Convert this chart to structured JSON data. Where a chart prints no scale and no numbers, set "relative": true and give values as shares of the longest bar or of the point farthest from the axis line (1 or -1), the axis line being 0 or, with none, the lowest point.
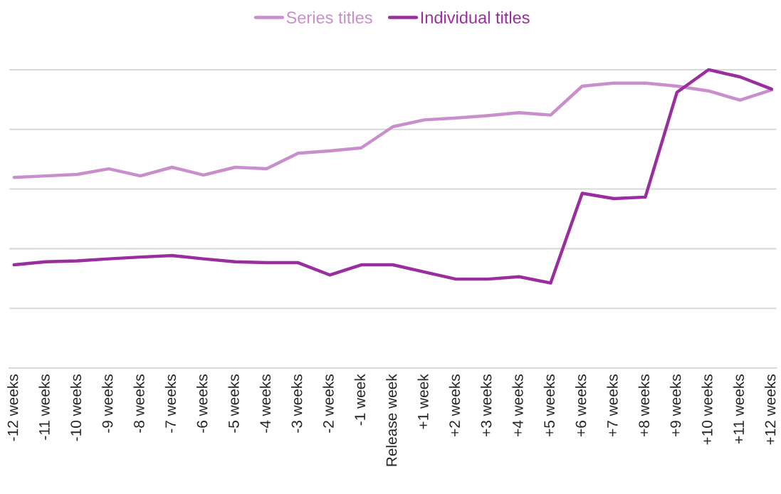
{
  "chart_data": {
    "type": "line",
    "relative": true,
    "grid": "y",
    "legend": "top",
    "marker": "none",
    "line_style": "solid",
    "categories": [
      "-12 weeks",
      "-11 weeks",
      "-10 weeks",
      "-9 weeks",
      "-8 weeks",
      "-7 weeks",
      "-6 weeks",
      "-5 weeks",
      "-4 weeks",
      "-3 weeks",
      "-2 weeks",
      "-1 week",
      "Release week",
      "+1 week",
      "+2 weeks",
      "+3 weeks",
      "+4 weeks",
      "+5 weeks",
      "+6 weeks",
      "+7 weeks",
      "+8 weeks",
      "+9 weeks",
      "+10 weeks",
      "+11 weeks",
      "+12 weeks"
    ],
    "series": [
      {
        "name": "Series titles",
        "color": "#c98fcc",
        "values": [
          0.639,
          0.644,
          0.649,
          0.668,
          0.644,
          0.673,
          0.647,
          0.673,
          0.668,
          0.72,
          0.728,
          0.738,
          0.809,
          0.832,
          0.838,
          0.846,
          0.856,
          0.848,
          0.945,
          0.955,
          0.955,
          0.945,
          0.929,
          0.898,
          0.932
        ]
      },
      {
        "name": "Individual titles",
        "color": "#9a2e9f",
        "values": [
          0.346,
          0.356,
          0.359,
          0.366,
          0.372,
          0.377,
          0.366,
          0.356,
          0.353,
          0.353,
          0.312,
          0.346,
          0.346,
          0.322,
          0.298,
          0.298,
          0.306,
          0.285,
          0.586,
          0.568,
          0.573,
          0.924,
          1,
          0.976,
          0.935
        ]
      }
    ]
  }
}
